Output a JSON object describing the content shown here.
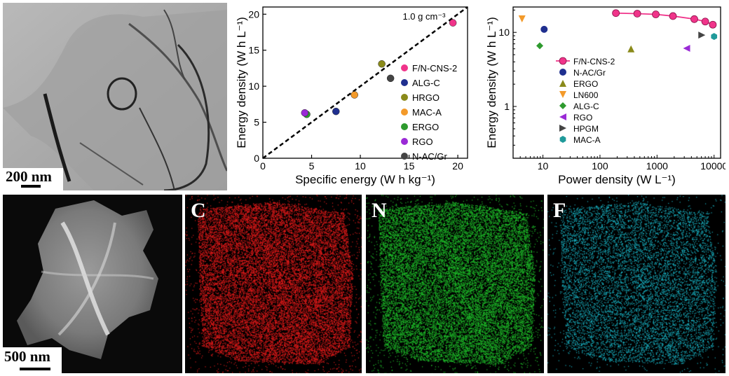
{
  "tem_panel": {
    "scale_bar": "200 nm"
  },
  "haadf_panel": {
    "scale_bar": "500 nm"
  },
  "element_maps": [
    {
      "element": "C",
      "color": "#e01a1a"
    },
    {
      "element": "N",
      "color": "#1fbf2a"
    },
    {
      "element": "F",
      "color": "#19b3c4"
    }
  ],
  "chart_data": [
    {
      "type": "scatter",
      "xlabel": "Specific energy (W h kg⁻¹)",
      "ylabel": "Energy density (W h L⁻¹)",
      "xlim": [
        0,
        21
      ],
      "ylim": [
        0,
        21
      ],
      "xticks": [
        0,
        5,
        10,
        15,
        20
      ],
      "yticks": [
        0,
        5,
        10,
        15,
        20
      ],
      "annotation": "1.0 g cm⁻³",
      "reference_line": {
        "x": [
          0,
          21
        ],
        "y": [
          0,
          21
        ],
        "style": "dashed"
      },
      "legend_position": "right",
      "series": [
        {
          "name": "F/N-CNS-2",
          "color": "#f0348a",
          "x": 19.5,
          "y": 18.8
        },
        {
          "name": "ALG-C",
          "color": "#1f2f8f",
          "x": 7.5,
          "y": 6.5
        },
        {
          "name": "HRGO",
          "color": "#8a8a1a",
          "x": 12.2,
          "y": 13.1
        },
        {
          "name": "MAC-A",
          "color": "#f39a2a",
          "x": 9.4,
          "y": 8.8
        },
        {
          "name": "ERGO",
          "color": "#2e9a2e",
          "x": 4.5,
          "y": 6.1
        },
        {
          "name": "RGO",
          "color": "#9a2ad6",
          "x": 4.3,
          "y": 6.3
        },
        {
          "name": "N-AC/Gr",
          "color": "#444444",
          "x": 13.1,
          "y": 11.1
        }
      ]
    },
    {
      "type": "scatter",
      "xlabel": "Power density (W L⁻¹)",
      "ylabel": "Energy density (W h L⁻¹)",
      "xscale": "log",
      "yscale": "log",
      "xlim": [
        3,
        13000
      ],
      "ylim": [
        0.2,
        22
      ],
      "xticks": [
        10,
        100,
        1000,
        10000
      ],
      "yticks": [
        1,
        10
      ],
      "legend_position": "left",
      "series": [
        {
          "name": "F/N-CNS-2",
          "color": "#f0348a",
          "marker": "circle-line",
          "x": [
            190,
            450,
            950,
            1900,
            4500,
            7000,
            9500
          ],
          "y": [
            18.2,
            17.9,
            17.5,
            16.6,
            15.1,
            14.0,
            12.7
          ]
        },
        {
          "name": "N-AC/Gr",
          "color": "#1f2f8f",
          "marker": "circle",
          "x": [
            10.5
          ],
          "y": [
            11.0
          ]
        },
        {
          "name": "ERGO",
          "color": "#8a8a1a",
          "marker": "triangle-up",
          "x": [
            350
          ],
          "y": [
            6.0
          ]
        },
        {
          "name": "LN600",
          "color": "#f39a2a",
          "marker": "triangle-down",
          "x": [
            4.3
          ],
          "y": [
            15.2
          ]
        },
        {
          "name": "ALG-C",
          "color": "#2e9a2e",
          "marker": "diamond",
          "x": [
            8.8
          ],
          "y": [
            6.6
          ]
        },
        {
          "name": "RGO",
          "color": "#9a2ad6",
          "marker": "triangle-left",
          "x": [
            3300
          ],
          "y": [
            6.1
          ]
        },
        {
          "name": "HPGM",
          "color": "#444444",
          "marker": "triangle-right",
          "x": [
            6100
          ],
          "y": [
            9.2
          ]
        },
        {
          "name": "MAC-A",
          "color": "#1f9a9a",
          "marker": "hexagon",
          "x": [
            10000
          ],
          "y": [
            8.8
          ]
        }
      ]
    }
  ]
}
